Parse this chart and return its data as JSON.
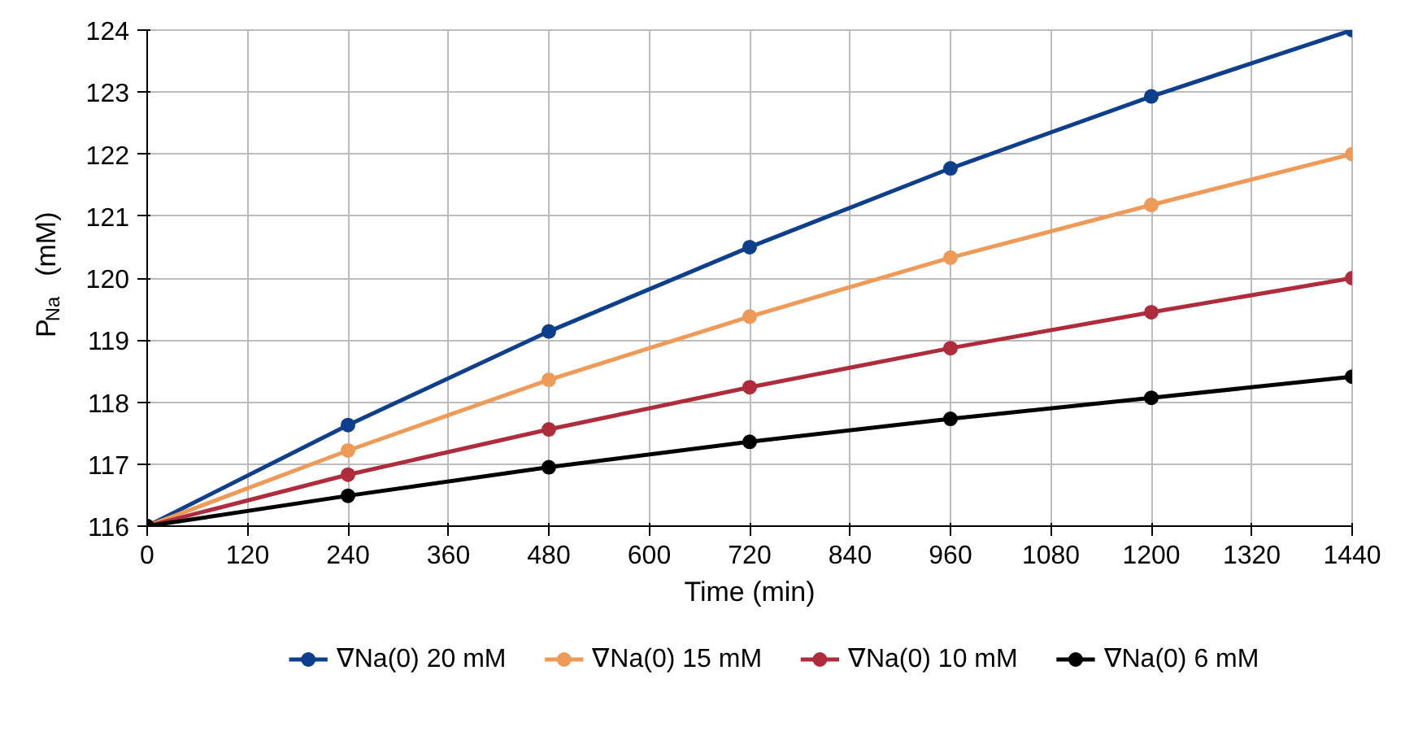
{
  "chart_data": {
    "type": "line",
    "xlabel": "Time (min)",
    "ylabel": "P$_{Na}$ (mM)",
    "x": [
      0,
      240,
      480,
      720,
      960,
      1200,
      1440
    ],
    "series": [
      {
        "name": "∇Na(0) 20 mM",
        "color": "#0d3f8c",
        "values": [
          116,
          117.63,
          119.14,
          120.5,
          121.77,
          122.93,
          124
        ]
      },
      {
        "name": "∇Na(0) 15 mM",
        "color": "#ee9a58",
        "values": [
          116,
          117.22,
          118.36,
          119.38,
          120.33,
          121.18,
          122
        ]
      },
      {
        "name": "∇Na(0) 10 mM",
        "color": "#ae2c3c",
        "values": [
          116,
          116.83,
          117.56,
          118.24,
          118.87,
          119.45,
          120
        ]
      },
      {
        "name": "∇Na(0) 6 mM",
        "color": "#000000",
        "values": [
          116,
          116.49,
          116.95,
          117.36,
          117.73,
          118.07,
          118.41
        ]
      }
    ],
    "xlim": [
      0,
      1440
    ],
    "ylim": [
      116,
      124
    ],
    "xticks": [
      0,
      120,
      240,
      360,
      480,
      600,
      720,
      840,
      960,
      1080,
      1200,
      1320,
      1440
    ],
    "yticks": [
      116,
      117,
      118,
      119,
      120,
      121,
      122,
      123,
      124
    ],
    "grid": true,
    "legend": "bottom",
    "marker": "circle",
    "line_style": "solid"
  }
}
